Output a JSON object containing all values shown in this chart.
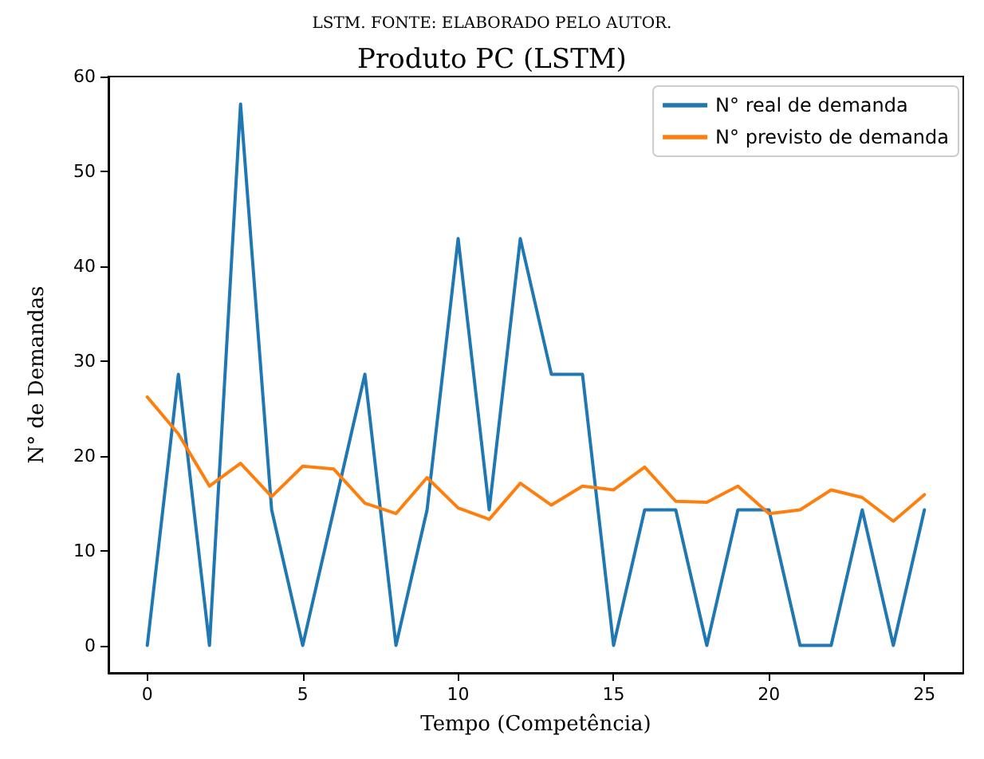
{
  "chart_data": {
    "type": "line",
    "title": "Produto PC (LSTM)",
    "xlabel": "Tempo (Competência)",
    "ylabel": "N° de Demandas",
    "annotations": [
      "LSTM. FONTE: ELABORADO PELO AUTOR."
    ],
    "x": [
      0,
      1,
      2,
      3,
      4,
      5,
      6,
      7,
      8,
      9,
      10,
      11,
      12,
      13,
      14,
      15,
      16,
      17,
      18,
      19,
      20,
      21,
      22,
      23,
      24,
      25
    ],
    "series": [
      {
        "name": "N° real de demanda",
        "color": "#1f77b4",
        "values": [
          0,
          28.6,
          0,
          57.1,
          14.3,
          0,
          14.3,
          28.6,
          0,
          14.3,
          42.9,
          14.3,
          42.9,
          28.6,
          28.6,
          0,
          14.3,
          14.3,
          0,
          14.3,
          14.3,
          0,
          0,
          14.3,
          0,
          14.3
        ]
      },
      {
        "name": "N° previsto de demanda",
        "color": "#ff7f0e",
        "values": [
          26.2,
          22.3,
          16.8,
          19.2,
          15.7,
          18.9,
          18.6,
          15.0,
          13.9,
          17.7,
          14.5,
          13.3,
          17.1,
          14.8,
          16.8,
          16.4,
          18.8,
          15.2,
          15.1,
          16.8,
          13.9,
          14.3,
          16.4,
          15.6,
          13.1,
          15.9
        ]
      }
    ],
    "xlim": [
      -1.25,
      26.25
    ],
    "xticks": [
      0,
      5,
      10,
      15,
      20,
      25
    ],
    "ylim": [
      -2.9,
      60
    ],
    "yticks": [
      0,
      10,
      20,
      30,
      40,
      50,
      60
    ],
    "grid": false,
    "legend": "top right",
    "marker": "none",
    "line_style": "solid"
  }
}
